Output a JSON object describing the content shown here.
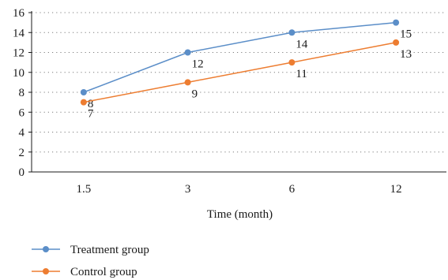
{
  "chart_data": {
    "type": "line",
    "title": "",
    "xlabel": "Time (month)",
    "ylabel": "",
    "categories": [
      "1.5",
      "3",
      "6",
      "12"
    ],
    "ylim": [
      0,
      16
    ],
    "yticks": [
      "0",
      "2",
      "4",
      "6",
      "8",
      "10",
      "12",
      "14",
      "16"
    ],
    "grid": "horizontal dotted",
    "legend_position": "bottom-left",
    "series": [
      {
        "name": "Treatment group",
        "values": [
          8,
          12,
          14,
          15
        ],
        "labels": [
          "8",
          "12",
          "14",
          "15"
        ],
        "color": "#5b8ec8"
      },
      {
        "name": "Control group",
        "values": [
          7,
          9,
          11,
          13
        ],
        "labels": [
          "7",
          "9",
          "11",
          "13"
        ],
        "color": "#ed7d31"
      }
    ]
  }
}
